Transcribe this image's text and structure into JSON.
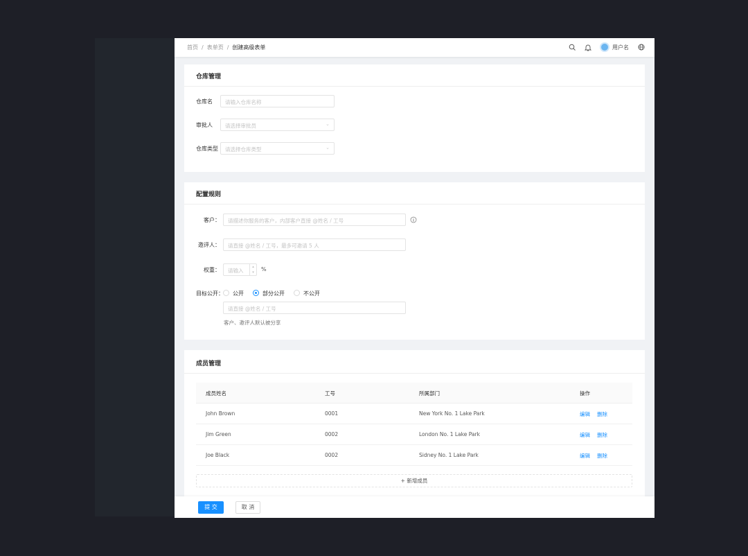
{
  "breadcrumb": [
    "首页",
    "表单页",
    "创建高级表单"
  ],
  "header": {
    "username": "用户名",
    "icons": [
      "search-icon",
      "bell-icon",
      "avatar",
      "globe-icon"
    ]
  },
  "warehouse": {
    "title": "仓库管理",
    "name_label": "仓库名",
    "name_placeholder": "请输入仓库名称",
    "approver_label": "审批人",
    "approver_placeholder": "请选择审批员",
    "type_label": "仓库类型",
    "type_placeholder": "请选择仓库类型"
  },
  "rules": {
    "title": "配置规则",
    "customer_label": "客户：",
    "customer_placeholder": "请描述你服务的客户，内部客户直接 @姓名 / 工号",
    "invitee_label": "邀评人：",
    "invitee_placeholder": "请直接 @姓名 / 工号，最多可邀请 5 人",
    "weight_label": "权重：",
    "weight_placeholder": "请输入",
    "weight_unit": "%",
    "public_label": "目标公开：",
    "public_options": [
      "公开",
      "部分公开",
      "不公开"
    ],
    "public_selected": "部分公开",
    "share_placeholder": "请直接 @姓名 / 工号",
    "help_text": "客户、邀评人默认被分享"
  },
  "members": {
    "title": "成员管理",
    "columns": [
      "成员姓名",
      "工号",
      "所属部门",
      "操作"
    ],
    "rows": [
      {
        "name": "John Brown",
        "id": "0001",
        "dept": "New York No. 1 Lake Park",
        "edit": "编辑",
        "delete": "删除"
      },
      {
        "name": "Jim Green",
        "id": "0002",
        "dept": "London No. 1 Lake Park",
        "edit": "编辑",
        "delete": "删除"
      },
      {
        "name": "Joe Black",
        "id": "0002",
        "dept": "Sidney No. 1 Lake Park",
        "edit": "编辑",
        "delete": "删除"
      }
    ],
    "add_label": "新增成员"
  },
  "footer": {
    "submit": "提 交",
    "cancel": "取 消"
  },
  "colors": {
    "primary": "#1890ff",
    "background": "#f0f2f5"
  }
}
